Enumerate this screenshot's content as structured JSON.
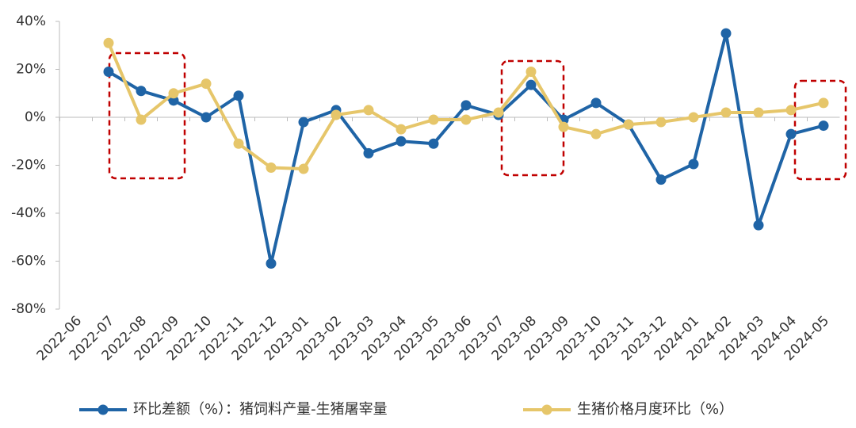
{
  "chart_data": {
    "type": "line",
    "categories": [
      "2022-06",
      "2022-07",
      "2022-08",
      "2022-09",
      "2022-10",
      "2022-11",
      "2022-12",
      "2023-01",
      "2023-02",
      "2023-03",
      "2023-04",
      "2023-05",
      "2023-06",
      "2023-07",
      "2023-08",
      "2023-09",
      "2023-10",
      "2023-11",
      "2023-12",
      "2024-01",
      "2024-02",
      "2024-03",
      "2024-04",
      "2024-05"
    ],
    "series": [
      {
        "name": "环比差额（%）：猪饲料产量-生猪屠宰量",
        "color": "#1f64a6",
        "values": [
          null,
          19,
          11,
          7,
          0,
          9,
          -61,
          -2,
          3,
          -15,
          -10,
          -11,
          5,
          1,
          13.5,
          -1,
          6,
          -3,
          -26,
          -19.5,
          35,
          -45,
          -7,
          -3.5
        ]
      },
      {
        "name": "生猪价格月度环比（%）",
        "color": "#e6c66a",
        "values": [
          null,
          31,
          -1,
          10,
          14,
          -11,
          -21,
          -21.5,
          1,
          3,
          -5,
          -1,
          -1,
          2,
          19,
          -4,
          -7,
          -3,
          -2,
          0,
          2,
          2,
          3,
          6
        ]
      }
    ],
    "ylim": [
      -80,
      40
    ],
    "yticks": [
      {
        "value": -80,
        "label": "-80%"
      },
      {
        "value": -60,
        "label": "-60%"
      },
      {
        "value": -40,
        "label": "-40%"
      },
      {
        "value": -20,
        "label": "-20%"
      },
      {
        "value": 0,
        "label": "0%"
      },
      {
        "value": 20,
        "label": "20%"
      },
      {
        "value": 40,
        "label": "40%"
      }
    ],
    "grid": false
  }
}
